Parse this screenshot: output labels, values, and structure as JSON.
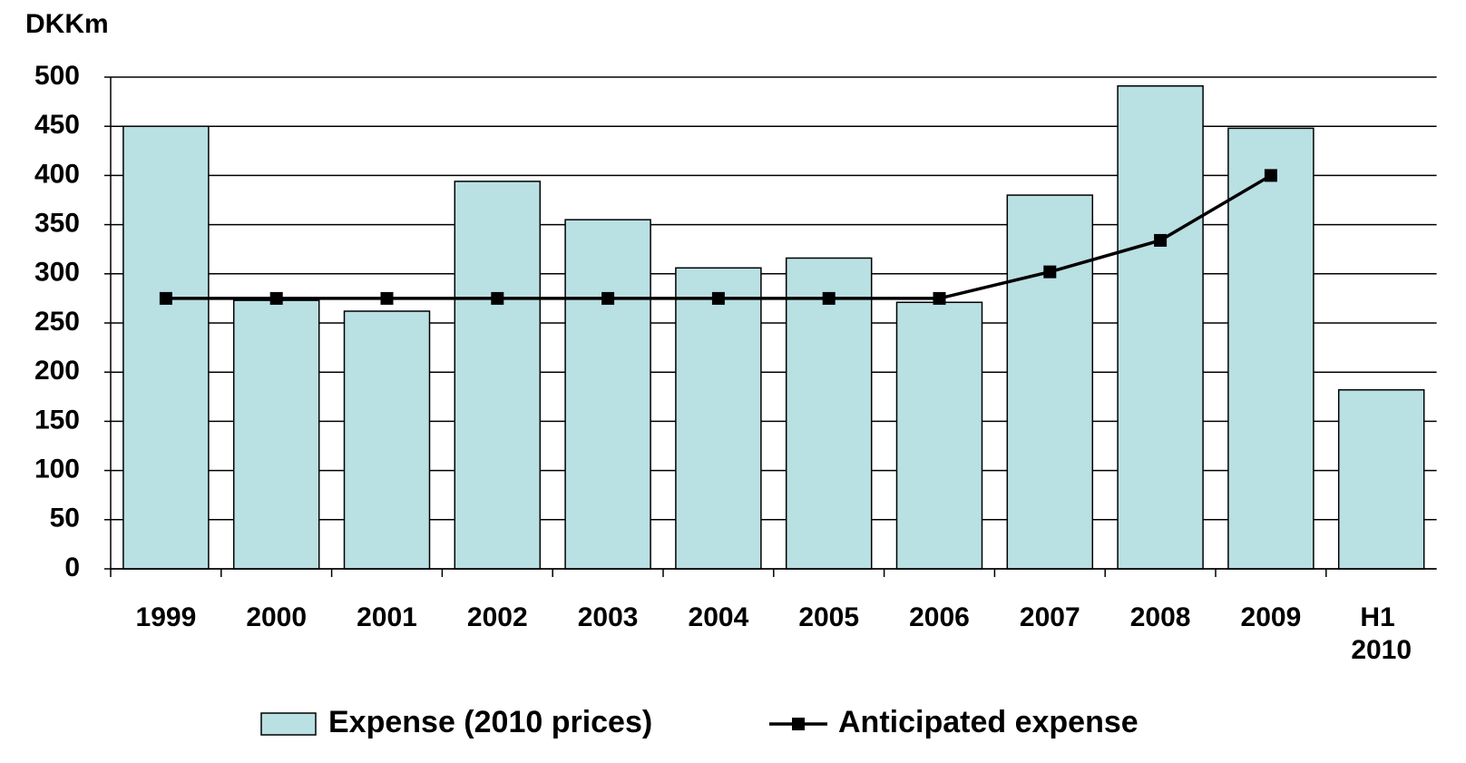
{
  "chart_data": {
    "type": "bar_line",
    "y_axis_label": "DKKm",
    "categories": [
      "1999",
      "2000",
      "2001",
      "2002",
      "2003",
      "2004",
      "2005",
      "2006",
      "2007",
      "2008",
      "2009",
      "H1 2010"
    ],
    "series": [
      {
        "name": "Expense (2010 prices)",
        "type": "bar",
        "color": "#b9e0e3",
        "values": [
          450,
          273,
          262,
          394,
          355,
          306,
          316,
          271,
          380,
          491,
          448,
          182
        ]
      },
      {
        "name": "Anticipated expense",
        "type": "line",
        "color": "#000000",
        "values": [
          275,
          275,
          275,
          275,
          275,
          275,
          275,
          275,
          302,
          334,
          400,
          null
        ]
      }
    ],
    "ylim": [
      0,
      500
    ],
    "yticks": [
      0,
      50,
      100,
      150,
      200,
      250,
      300,
      350,
      400,
      450,
      500
    ],
    "grid": true,
    "legend": "bottom"
  }
}
